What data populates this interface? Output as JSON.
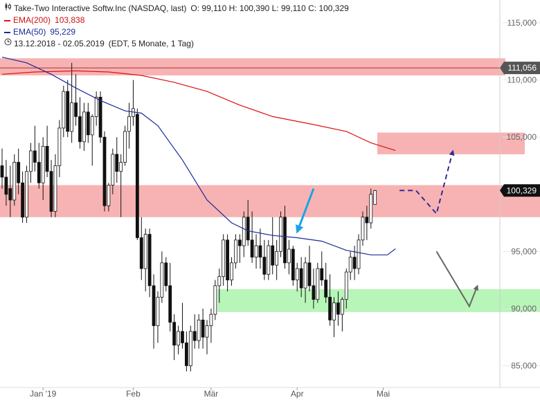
{
  "header": {
    "title": "Take-Two Interactive Softw.Inc (NASDAQ, last)",
    "ohlc": "O: 99,110  H: 100,390  L: 99,110  C: 100,329",
    "ema200_label": "EMA(200)",
    "ema200_value": "103,838",
    "ema50_label": "EMA(50)",
    "ema50_value": "95,229",
    "period": "13.12.2018 - 02.05.2019",
    "period_note": "(EDT, 5 Monate, 1 Tag)",
    "icons": [
      "candlestick-icon",
      "clock-icon"
    ]
  },
  "chart_data": {
    "type": "candlestick",
    "title": "Take-Two Interactive Softw.Inc (NASDAQ, last)",
    "ylim": [
      82000,
      117000
    ],
    "y_ticks": [
      {
        "value": 85000,
        "label": "85,000"
      },
      {
        "value": 90000,
        "label": "90,000"
      },
      {
        "value": 95000,
        "label": "95,000"
      },
      {
        "value": 105000,
        "label": "105,000"
      },
      {
        "value": 110000,
        "label": "110,000"
      },
      {
        "value": 115000,
        "label": "115,000"
      }
    ],
    "x_ticks": [
      {
        "label": "Jan '19",
        "index": 10
      },
      {
        "label": "Feb",
        "index": 32
      },
      {
        "label": "Mär",
        "index": 51
      },
      {
        "label": "Apr",
        "index": 72
      },
      {
        "label": "Mai",
        "index": 93
      }
    ],
    "price_tags": [
      {
        "label": "111,056",
        "value": 111056,
        "color": "#555555"
      },
      {
        "label": "100,329",
        "value": 100329,
        "color": "#111111"
      }
    ],
    "ohlc": [
      [
        102500,
        104000,
        100500,
        101500
      ],
      [
        101500,
        103000,
        99000,
        100000
      ],
      [
        100500,
        102500,
        98000,
        99500
      ],
      [
        99500,
        103500,
        99000,
        102800
      ],
      [
        102800,
        104000,
        100000,
        101000
      ],
      [
        101000,
        102000,
        97500,
        98000
      ],
      [
        98000,
        102500,
        97500,
        102000
      ],
      [
        102000,
        104500,
        101000,
        103800
      ],
      [
        103800,
        106000,
        102000,
        102800
      ],
      [
        102800,
        104500,
        100500,
        101000
      ],
      [
        101000,
        105000,
        99500,
        104200
      ],
      [
        104200,
        106000,
        101500,
        102000
      ],
      [
        102000,
        103000,
        98000,
        98500
      ],
      [
        98500,
        103500,
        98000,
        102500
      ],
      [
        102500,
        106500,
        101500,
        105800
      ],
      [
        105800,
        109500,
        105000,
        109000
      ],
      [
        109000,
        110000,
        105000,
        105500
      ],
      [
        105500,
        111500,
        104500,
        108000
      ],
      [
        108000,
        110500,
        106000,
        106800
      ],
      [
        106800,
        108500,
        104000,
        104600
      ],
      [
        104600,
        108000,
        103800,
        107200
      ],
      [
        107200,
        108000,
        104500,
        105200
      ],
      [
        105200,
        107000,
        102500,
        106800
      ],
      [
        106800,
        109000,
        106000,
        108500
      ],
      [
        108500,
        109000,
        104500,
        105000
      ],
      [
        105000,
        105500,
        98500,
        99000
      ],
      [
        99000,
        101000,
        98500,
        100800
      ],
      [
        100800,
        104000,
        100000,
        103500
      ],
      [
        103500,
        105000,
        101000,
        102000
      ],
      [
        102000,
        103500,
        98000,
        102800
      ],
      [
        102800,
        106000,
        102500,
        105500
      ],
      [
        105500,
        108000,
        104000,
        106800
      ],
      [
        106800,
        110000,
        106000,
        107500
      ],
      [
        107000,
        107500,
        96000,
        96200
      ],
      [
        96200,
        98000,
        92500,
        93500
      ],
      [
        93500,
        97000,
        91500,
        96500
      ],
      [
        96500,
        97000,
        91000,
        92000
      ],
      [
        92000,
        93000,
        86500,
        88500
      ],
      [
        88500,
        91500,
        87000,
        91000
      ],
      [
        91000,
        95000,
        90500,
        94000
      ],
      [
        94000,
        94500,
        91500,
        92000
      ],
      [
        92000,
        94000,
        88000,
        88800
      ],
      [
        88800,
        89500,
        85500,
        86800
      ],
      [
        86800,
        88500,
        86000,
        88000
      ],
      [
        88000,
        90500,
        86500,
        87000
      ],
      [
        87000,
        88000,
        84500,
        85000
      ],
      [
        85000,
        88500,
        84500,
        88000
      ],
      [
        88000,
        89500,
        86500,
        87200
      ],
      [
        87200,
        89500,
        86500,
        89000
      ],
      [
        89000,
        90000,
        86500,
        87500
      ],
      [
        87500,
        89000,
        86000,
        88500
      ],
      [
        88500,
        90000,
        87000,
        89500
      ],
      [
        89500,
        92500,
        89000,
        92000
      ],
      [
        92000,
        93500,
        90500,
        92800
      ],
      [
        92800,
        96500,
        92000,
        96000
      ],
      [
        96000,
        96500,
        91500,
        92500
      ],
      [
        92500,
        94500,
        92000,
        94000
      ],
      [
        94000,
        96500,
        93500,
        96000
      ],
      [
        96000,
        96500,
        94000,
        95500
      ],
      [
        95500,
        98500,
        94500,
        98000
      ],
      [
        98000,
        99500,
        95500,
        96000
      ],
      [
        96000,
        98500,
        94000,
        94500
      ],
      [
        94500,
        96500,
        93500,
        95500
      ],
      [
        95500,
        97000,
        93500,
        94500
      ],
      [
        94500,
        96000,
        92500,
        93000
      ],
      [
        93000,
        96000,
        92500,
        95500
      ],
      [
        95500,
        98000,
        93000,
        93800
      ],
      [
        93800,
        96000,
        92500,
        95000
      ],
      [
        95000,
        98500,
        94500,
        98000
      ],
      [
        98000,
        99000,
        93500,
        94000
      ],
      [
        94000,
        96000,
        93000,
        95200
      ],
      [
        95200,
        95500,
        92000,
        92500
      ],
      [
        92500,
        94000,
        91500,
        93500
      ],
      [
        93500,
        94500,
        91000,
        91800
      ],
      [
        91800,
        94500,
        90500,
        94000
      ],
      [
        94000,
        95500,
        91500,
        92000
      ],
      [
        92000,
        93500,
        90000,
        90800
      ],
      [
        90800,
        94000,
        90500,
        93500
      ],
      [
        93500,
        95000,
        92000,
        92500
      ],
      [
        92500,
        94000,
        90500,
        91000
      ],
      [
        91000,
        93000,
        88500,
        89000
      ],
      [
        89000,
        91000,
        87500,
        90500
      ],
      [
        90500,
        91500,
        88500,
        89500
      ],
      [
        89500,
        91000,
        88000,
        90800
      ],
      [
        90800,
        93500,
        90000,
        93200
      ],
      [
        93200,
        95000,
        92500,
        94500
      ],
      [
        94500,
        95500,
        92500,
        93500
      ],
      [
        93500,
        96500,
        93000,
        96000
      ],
      [
        96000,
        98500,
        95500,
        98000
      ],
      [
        98000,
        99000,
        96000,
        97500
      ],
      [
        97500,
        100500,
        97000,
        100000
      ],
      [
        99110,
        100390,
        99110,
        100329
      ]
    ],
    "series": [
      {
        "name": "EMA(200)",
        "color": "#dd1111",
        "values": [
          [
            0,
            110500
          ],
          [
            8,
            110700
          ],
          [
            18,
            110800
          ],
          [
            26,
            110700
          ],
          [
            34,
            110400
          ],
          [
            42,
            109800
          ],
          [
            50,
            109000
          ],
          [
            58,
            107800
          ],
          [
            66,
            106800
          ],
          [
            76,
            106100
          ],
          [
            84,
            105500
          ],
          [
            90,
            104500
          ],
          [
            96,
            103838
          ]
        ]
      },
      {
        "name": "EMA(50)",
        "color": "#1a2a99",
        "values": [
          [
            0,
            112000
          ],
          [
            6,
            111500
          ],
          [
            12,
            110500
          ],
          [
            18,
            109300
          ],
          [
            24,
            108200
          ],
          [
            30,
            107300
          ],
          [
            34,
            107100
          ],
          [
            38,
            106000
          ],
          [
            44,
            103000
          ],
          [
            50,
            99500
          ],
          [
            56,
            97500
          ],
          [
            60,
            96800
          ],
          [
            66,
            96400
          ],
          [
            72,
            96200
          ],
          [
            78,
            95900
          ],
          [
            84,
            95100
          ],
          [
            90,
            94700
          ],
          [
            94,
            94700
          ],
          [
            96,
            95229
          ]
        ]
      }
    ],
    "zones": [
      {
        "from": 110400,
        "to": 111900,
        "color": "#f7b3b3"
      },
      {
        "from": 98000,
        "to": 100800,
        "color": "#f7b3b3"
      },
      {
        "from": 103500,
        "to": 105400,
        "color": "#f7b3b3"
      },
      {
        "from": 89700,
        "to": 91700,
        "color": "#b8f5b8"
      }
    ],
    "hline": {
      "value": 111056,
      "color": "#b03030"
    },
    "annotations": [
      {
        "kind": "arrow",
        "color": "#1aa3e8",
        "from": [
          76,
          100500
        ],
        "to": [
          72,
          96700
        ]
      },
      {
        "kind": "dashed-path",
        "color": "#33289a",
        "points": [
          [
            97,
            100329
          ],
          [
            101,
            100329
          ],
          [
            106,
            98300
          ],
          [
            110,
            103800
          ]
        ]
      },
      {
        "kind": "path",
        "color": "#666666",
        "points": [
          [
            106,
            95000
          ],
          [
            114,
            90200
          ],
          [
            116,
            92000
          ]
        ]
      }
    ]
  }
}
